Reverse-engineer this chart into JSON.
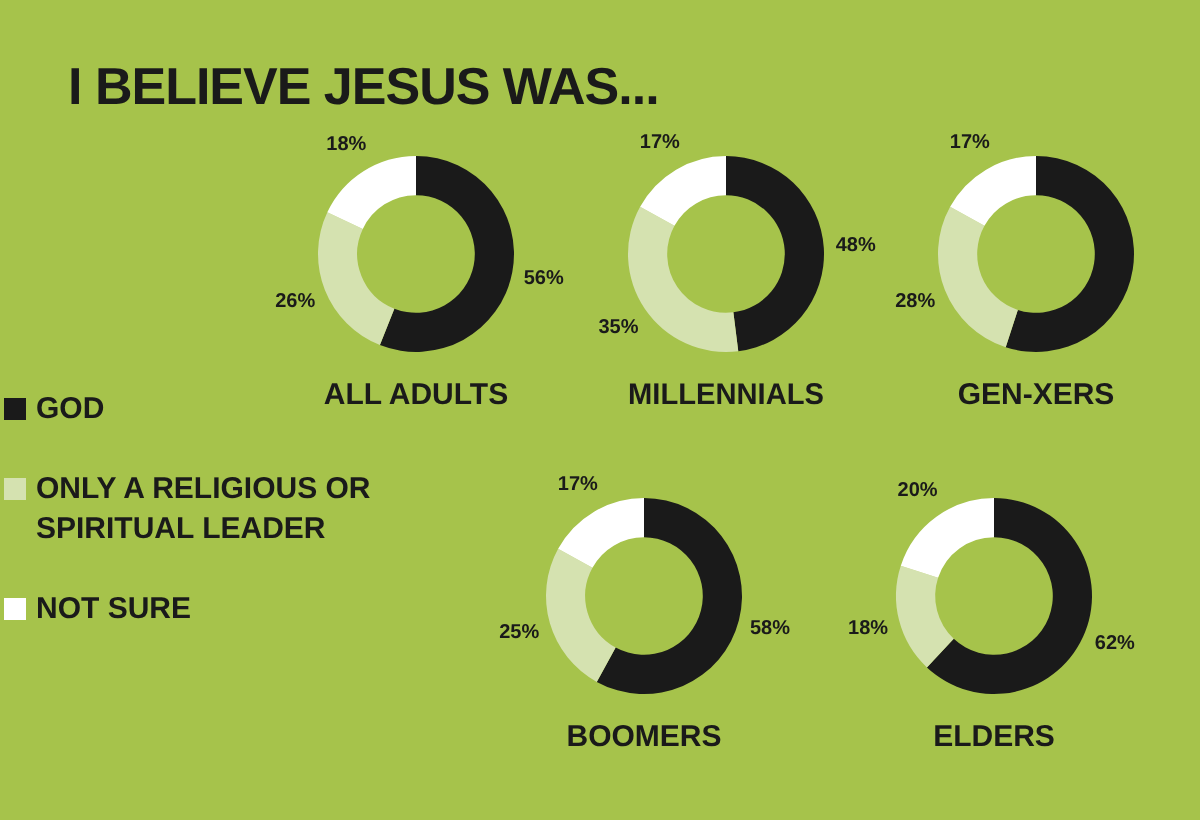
{
  "chart_data": [
    {
      "type": "other",
      "title": "I BELIEVE JESUS WAS..."
    },
    {
      "type": "donut",
      "title": "ALL ADULTS",
      "categories": [
        "GOD",
        "ONLY A RELIGIOUS OR SPIRITUAL LEADER",
        "NOT SURE"
      ],
      "values": [
        56,
        26,
        18
      ],
      "colors": [
        "#1a1a1a",
        "#d5e2b0",
        "#ffffff"
      ],
      "value_labels": [
        "56%",
        "26%",
        "18%"
      ],
      "legend": "left"
    },
    {
      "type": "donut",
      "title": "MILLENNIALS",
      "categories": [
        null,
        null,
        null
      ],
      "values": [
        48,
        35,
        17
      ],
      "colors": [
        "#1a1a1a",
        "#d5e2b0",
        "#ffffff"
      ],
      "value_labels": [
        "48%",
        "35%",
        "17%"
      ]
    },
    {
      "type": "donut",
      "title": "GEN-XERS",
      "categories": [
        null,
        null,
        null
      ],
      "values": [
        55,
        28,
        17
      ],
      "colors": [
        "#1a1a1a",
        "#d5e2b0",
        "#ffffff"
      ],
      "value_labels": [
        null,
        "28%",
        "17%"
      ]
    },
    {
      "type": "donut",
      "title": "BOOMERS",
      "categories": [
        null,
        null,
        null
      ],
      "values": [
        58,
        25,
        17
      ],
      "colors": [
        "#1a1a1a",
        "#d5e2b0",
        "#ffffff"
      ],
      "value_labels": [
        "58%",
        "25%",
        "17%"
      ]
    },
    {
      "type": "donut",
      "title": "ELDERS",
      "categories": [
        null,
        null,
        null
      ],
      "values": [
        62,
        18,
        20
      ],
      "colors": [
        "#1a1a1a",
        "#d5e2b0",
        "#ffffff"
      ],
      "value_labels": [
        "62%",
        "18%",
        "20%"
      ]
    }
  ]
}
